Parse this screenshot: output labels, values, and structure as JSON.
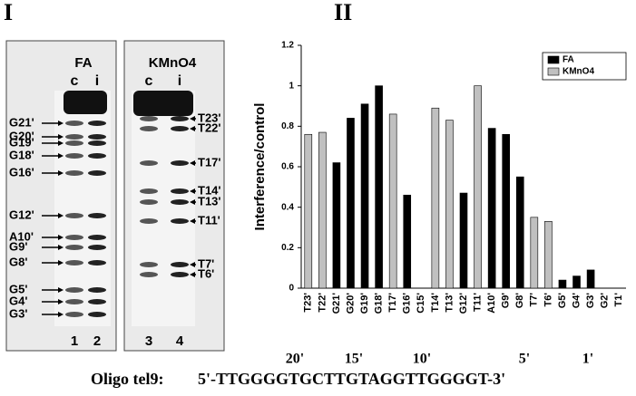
{
  "panel_labels": [
    "I",
    "II"
  ],
  "gel": {
    "panels": [
      {
        "title": "FA",
        "lanes": [
          "c",
          "i"
        ],
        "lane_numbers": [
          "1",
          "2"
        ],
        "bands": [
          "G21'",
          "G20'",
          "G19'",
          "G18'",
          "G16'",
          "G12'",
          "A10'",
          "G9'",
          "G8'",
          "G5'",
          "G4'",
          "G3'"
        ]
      },
      {
        "title": "KMnO4",
        "lanes": [
          "c",
          "i"
        ],
        "lane_numbers": [
          "3",
          "4"
        ],
        "bands": [
          "T23'",
          "T22'",
          "T17'",
          "T14'",
          "T13'",
          "T11'",
          "T7'",
          "T6'"
        ]
      }
    ]
  },
  "chart_data": {
    "type": "bar",
    "y_label": "Interference/control",
    "categories": [
      "T23'",
      "T22'",
      "G21'",
      "G20'",
      "G19'",
      "G18'",
      "T17'",
      "G16'",
      "C15'",
      "T14'",
      "T13'",
      "G12'",
      "T11'",
      "A10'",
      "G9'",
      "G8'",
      "T7'",
      "T6'",
      "G5'",
      "G4'",
      "G3'",
      "G2'",
      "T1'"
    ],
    "series": [
      {
        "name": "FA",
        "color": "#000000",
        "values": [
          null,
          null,
          0.62,
          0.84,
          0.91,
          1.0,
          null,
          0.46,
          null,
          null,
          null,
          0.47,
          null,
          0.79,
          0.76,
          0.55,
          null,
          null,
          0.04,
          0.06,
          0.09,
          null,
          null
        ]
      },
      {
        "name": "KMnO4",
        "color": "#c0c0c0",
        "values": [
          0.76,
          0.77,
          null,
          null,
          null,
          null,
          0.86,
          null,
          null,
          0.89,
          0.83,
          null,
          1.0,
          null,
          null,
          null,
          0.35,
          0.33,
          null,
          null,
          null,
          null,
          null
        ]
      }
    ],
    "ylim": [
      0,
      1.2
    ],
    "yticks": [
      0,
      0.2,
      0.4,
      0.6,
      0.8,
      1,
      1.2
    ],
    "grid": false,
    "legend": "top-right"
  },
  "sequence": {
    "name": "Oligo tel9:",
    "text": "5'-TTGGGGTGCTTGTAGGTTGGGGT-3'",
    "positions": [
      "20'",
      "15'",
      "10'",
      "5'",
      "1'"
    ]
  }
}
